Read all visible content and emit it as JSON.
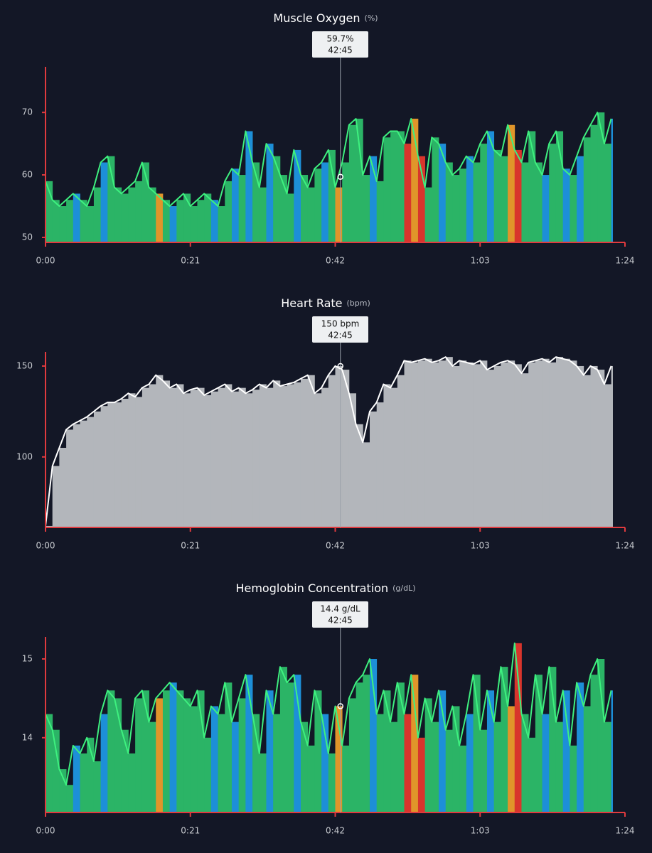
{
  "chart_data": [
    {
      "type": "area",
      "title": "Muscle Oxygen",
      "unit": "(%)",
      "x": [
        0,
        1,
        2,
        3,
        4,
        5,
        6,
        7,
        8,
        9,
        10,
        11,
        12,
        13,
        14,
        15,
        16,
        17,
        18,
        19,
        20,
        21,
        22,
        23,
        24,
        25,
        26,
        27,
        28,
        29,
        30,
        31,
        32,
        33,
        34,
        35,
        36,
        37,
        38,
        39,
        40,
        41,
        42,
        43,
        44,
        45,
        46,
        47,
        48,
        49,
        50,
        51,
        52,
        53,
        54,
        55,
        56,
        57,
        58,
        59,
        60,
        61,
        62,
        63,
        64,
        65,
        66,
        67,
        68,
        69,
        70,
        71,
        72,
        73,
        74,
        75,
        76,
        77,
        78,
        79,
        80,
        81,
        82
      ],
      "series": [
        {
          "values": [
            59,
            56,
            55,
            56,
            57,
            56,
            55,
            58,
            62,
            63,
            58,
            57,
            58,
            59,
            62,
            58,
            57,
            56,
            55,
            56,
            57,
            55,
            56,
            57,
            56,
            55,
            59,
            61,
            60,
            67,
            62,
            58,
            65,
            63,
            60,
            57,
            64,
            60,
            58,
            61,
            62,
            64,
            58,
            62,
            68,
            69,
            60,
            63,
            59,
            66,
            67,
            67,
            65,
            69,
            63,
            58,
            66,
            65,
            62,
            60,
            61,
            63,
            62,
            65,
            67,
            64,
            63,
            68,
            64,
            62,
            67,
            62,
            60,
            65,
            67,
            61,
            60,
            63,
            66,
            68,
            70,
            65,
            69
          ],
          "color": "#2bb466",
          "line_color": "#3ef07f"
        }
      ],
      "zones": [
        0,
        0,
        0,
        0,
        1,
        0,
        0,
        0,
        1,
        0,
        0,
        0,
        0,
        0,
        0,
        0,
        2,
        0,
        1,
        0,
        0,
        0,
        0,
        0,
        1,
        0,
        0,
        1,
        0,
        1,
        0,
        0,
        1,
        0,
        0,
        0,
        1,
        0,
        0,
        0,
        1,
        0,
        2,
        0,
        0,
        0,
        0,
        1,
        0,
        0,
        0,
        0,
        3,
        2,
        3,
        0,
        0,
        1,
        0,
        0,
        0,
        1,
        0,
        0,
        1,
        0,
        0,
        2,
        3,
        0,
        0,
        0,
        1,
        0,
        0,
        1,
        0,
        1,
        0,
        0,
        0,
        0,
        1
      ],
      "zone_colors": [
        "#2bb466",
        "#1d8fd8",
        "#e0952a",
        "#d8352c"
      ],
      "xlim": [
        0,
        84
      ],
      "xticks": [
        {
          "value": 0,
          "label": "0:00"
        },
        {
          "value": 21,
          "label": "0:21"
        },
        {
          "value": 42,
          "label": "0:42"
        },
        {
          "value": 63,
          "label": "1:03"
        },
        {
          "value": 84,
          "label": "1:24"
        }
      ],
      "ylim": [
        49.2,
        77.3
      ],
      "yticks": [
        50,
        60,
        70
      ],
      "tooltip": {
        "y": {
          "value": 59.7,
          "label": "59.7%"
        },
        "x": {
          "value": 42.75,
          "label": "42:45"
        }
      }
    },
    {
      "type": "area",
      "title": "Heart Rate",
      "unit": "(bpm)",
      "x": [
        0,
        1,
        2,
        3,
        4,
        5,
        6,
        7,
        8,
        9,
        10,
        11,
        12,
        13,
        14,
        15,
        16,
        17,
        18,
        19,
        20,
        21,
        22,
        23,
        24,
        25,
        26,
        27,
        28,
        29,
        30,
        31,
        32,
        33,
        34,
        35,
        36,
        37,
        38,
        39,
        40,
        41,
        42,
        43,
        44,
        45,
        46,
        47,
        48,
        49,
        50,
        51,
        52,
        53,
        54,
        55,
        56,
        57,
        58,
        59,
        60,
        61,
        62,
        63,
        64,
        65,
        66,
        67,
        68,
        69,
        70,
        71,
        72,
        73,
        74,
        75,
        76,
        77,
        78,
        79,
        80,
        81,
        82
      ],
      "series": [
        {
          "values": [
            62,
            95,
            105,
            115,
            118,
            120,
            122,
            125,
            128,
            130,
            130,
            132,
            135,
            133,
            138,
            140,
            145,
            142,
            138,
            140,
            135,
            137,
            138,
            134,
            136,
            138,
            140,
            136,
            138,
            135,
            137,
            140,
            138,
            142,
            139,
            140,
            141,
            143,
            145,
            135,
            138,
            145,
            150,
            148,
            135,
            118,
            108,
            125,
            130,
            140,
            138,
            145,
            153,
            152,
            153,
            154,
            152,
            153,
            155,
            150,
            153,
            152,
            151,
            153,
            148,
            150,
            152,
            153,
            151,
            146,
            152,
            153,
            154,
            152,
            155,
            154,
            153,
            150,
            145,
            150,
            148,
            140,
            150
          ],
          "color": "#b3b6bb",
          "line_color": "#ffffff"
        }
      ],
      "xlim": [
        0,
        84
      ],
      "xticks": [
        {
          "value": 0,
          "label": "0:00"
        },
        {
          "value": 21,
          "label": "0:21"
        },
        {
          "value": 42,
          "label": "0:42"
        },
        {
          "value": 63,
          "label": "1:03"
        },
        {
          "value": 84,
          "label": "1:24"
        }
      ],
      "ylim": [
        61.2,
        157.8
      ],
      "yticks": [
        100,
        150
      ],
      "tooltip": {
        "y": {
          "value": 150,
          "label": "150 bpm"
        },
        "x": {
          "value": 42.75,
          "label": "42:45"
        }
      }
    },
    {
      "type": "area",
      "title": "Hemoglobin Concentration",
      "unit": "(g/dL)",
      "x": [
        0,
        1,
        2,
        3,
        4,
        5,
        6,
        7,
        8,
        9,
        10,
        11,
        12,
        13,
        14,
        15,
        16,
        17,
        18,
        19,
        20,
        21,
        22,
        23,
        24,
        25,
        26,
        27,
        28,
        29,
        30,
        31,
        32,
        33,
        34,
        35,
        36,
        37,
        38,
        39,
        40,
        41,
        42,
        43,
        44,
        45,
        46,
        47,
        48,
        49,
        50,
        51,
        52,
        53,
        54,
        55,
        56,
        57,
        58,
        59,
        60,
        61,
        62,
        63,
        64,
        65,
        66,
        67,
        68,
        69,
        70,
        71,
        72,
        73,
        74,
        75,
        76,
        77,
        78,
        79,
        80,
        81,
        82
      ],
      "series": [
        {
          "values": [
            14.3,
            14.1,
            13.6,
            13.4,
            13.9,
            13.8,
            14.0,
            13.7,
            14.3,
            14.6,
            14.5,
            14.1,
            13.8,
            14.5,
            14.6,
            14.2,
            14.5,
            14.6,
            14.7,
            14.6,
            14.5,
            14.4,
            14.6,
            14.0,
            14.4,
            14.3,
            14.7,
            14.2,
            14.5,
            14.8,
            14.3,
            13.8,
            14.6,
            14.3,
            14.9,
            14.7,
            14.8,
            14.2,
            13.9,
            14.6,
            14.3,
            13.8,
            14.4,
            13.9,
            14.5,
            14.7,
            14.8,
            15.0,
            14.3,
            14.6,
            14.2,
            14.7,
            14.3,
            14.8,
            14.0,
            14.5,
            14.2,
            14.6,
            14.1,
            14.4,
            13.9,
            14.3,
            14.8,
            14.1,
            14.6,
            14.2,
            14.9,
            14.4,
            15.2,
            14.3,
            14.0,
            14.8,
            14.3,
            14.9,
            14.2,
            14.6,
            13.9,
            14.7,
            14.4,
            14.8,
            15.0,
            14.2,
            14.6
          ],
          "color": "#2bb466",
          "line_color": "#3ef07f"
        }
      ],
      "zones": [
        0,
        0,
        0,
        0,
        1,
        0,
        0,
        0,
        1,
        0,
        0,
        0,
        0,
        0,
        0,
        0,
        2,
        0,
        1,
        0,
        0,
        0,
        0,
        0,
        1,
        0,
        0,
        1,
        0,
        1,
        0,
        0,
        1,
        0,
        0,
        0,
        1,
        0,
        0,
        0,
        1,
        0,
        2,
        0,
        0,
        0,
        0,
        1,
        0,
        0,
        0,
        0,
        3,
        2,
        3,
        0,
        0,
        1,
        0,
        0,
        0,
        1,
        0,
        0,
        1,
        0,
        0,
        2,
        3,
        0,
        0,
        0,
        1,
        0,
        0,
        1,
        0,
        1,
        0,
        0,
        0,
        0,
        1
      ],
      "zone_colors": [
        "#2bb466",
        "#1d8fd8",
        "#e0952a",
        "#d8352c"
      ],
      "xlim": [
        0,
        84
      ],
      "xticks": [
        {
          "value": 0,
          "label": "0:00"
        },
        {
          "value": 21,
          "label": "0:21"
        },
        {
          "value": 42,
          "label": "0:42"
        },
        {
          "value": 63,
          "label": "1:03"
        },
        {
          "value": 84,
          "label": "1:24"
        }
      ],
      "ylim": [
        13.05,
        15.28
      ],
      "yticks": [
        14,
        15
      ],
      "tooltip": {
        "y": {
          "value": 14.4,
          "label": "14.4 g/dL"
        },
        "x": {
          "value": 42.75,
          "label": "42:45"
        }
      }
    }
  ]
}
